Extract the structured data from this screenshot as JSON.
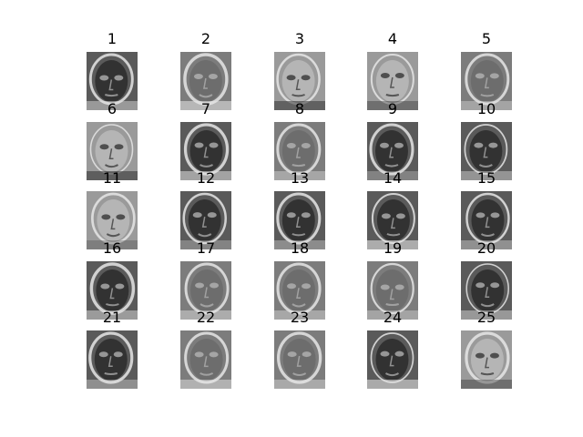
{
  "figure": {
    "panels": [
      {
        "title": "1",
        "tone": "dark",
        "depicts": "eigenface-icon"
      },
      {
        "title": "2",
        "tone": "mid",
        "depicts": "eigenface-icon"
      },
      {
        "title": "3",
        "tone": "light",
        "depicts": "eigenface-icon"
      },
      {
        "title": "4",
        "tone": "light",
        "depicts": "eigenface-icon"
      },
      {
        "title": "5",
        "tone": "mid",
        "depicts": "eigenface-icon"
      },
      {
        "title": "6",
        "tone": "light",
        "depicts": "eigenface-icon"
      },
      {
        "title": "7",
        "tone": "dark",
        "depicts": "eigenface-icon"
      },
      {
        "title": "8",
        "tone": "mid",
        "depicts": "eigenface-icon"
      },
      {
        "title": "9",
        "tone": "dark",
        "depicts": "eigenface-icon"
      },
      {
        "title": "10",
        "tone": "dark",
        "depicts": "eigenface-icon"
      },
      {
        "title": "11",
        "tone": "light",
        "depicts": "eigenface-icon"
      },
      {
        "title": "12",
        "tone": "dark",
        "depicts": "eigenface-icon"
      },
      {
        "title": "13",
        "tone": "dark",
        "depicts": "eigenface-icon"
      },
      {
        "title": "14",
        "tone": "dark",
        "depicts": "eigenface-icon"
      },
      {
        "title": "15",
        "tone": "dark",
        "depicts": "eigenface-icon"
      },
      {
        "title": "16",
        "tone": "dark",
        "depicts": "eigenface-icon"
      },
      {
        "title": "17",
        "tone": "mid",
        "depicts": "eigenface-icon"
      },
      {
        "title": "18",
        "tone": "mid",
        "depicts": "eigenface-icon"
      },
      {
        "title": "19",
        "tone": "mid",
        "depicts": "eigenface-icon"
      },
      {
        "title": "20",
        "tone": "dark",
        "depicts": "eigenface-icon"
      },
      {
        "title": "21",
        "tone": "dark",
        "depicts": "eigenface-icon"
      },
      {
        "title": "22",
        "tone": "mid",
        "depicts": "eigenface-icon"
      },
      {
        "title": "23",
        "tone": "mid",
        "depicts": "eigenface-icon"
      },
      {
        "title": "24",
        "tone": "dark",
        "depicts": "eigenface-icon"
      },
      {
        "title": "25",
        "tone": "light",
        "depicts": "eigenface-icon"
      }
    ],
    "colors": {
      "background": "#ffffff",
      "dark_bg": "#5a5a5a",
      "mid_bg": "#7c7c7c",
      "light_bg": "#9a9a9a",
      "face_dark": "#2e2e2e",
      "face_mid": "#6b6b6b",
      "face_light": "#b8b8b8",
      "edge": "#e6e6e6"
    }
  }
}
